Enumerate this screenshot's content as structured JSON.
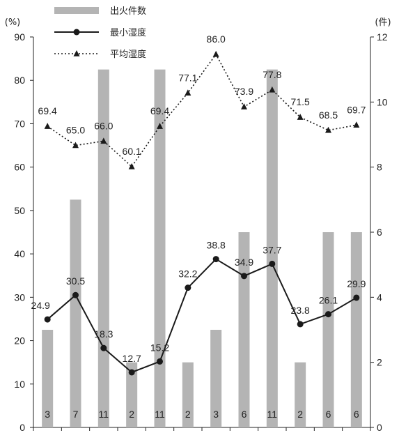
{
  "chart_data": {
    "type": "bar",
    "y_left_unit": "(%)",
    "y_right_unit": "(件)",
    "y_left_ticks": [
      "0",
      "10",
      "20",
      "30",
      "40",
      "50",
      "60",
      "70",
      "80",
      "90"
    ],
    "y_right_ticks": [
      "0",
      "2",
      "4",
      "6",
      "8",
      "10",
      "12"
    ],
    "ylim_left": [
      0,
      90
    ],
    "ylim_right": [
      0,
      12
    ],
    "legend": [
      {
        "label": "出火件数",
        "kind": "bar"
      },
      {
        "label": "最小湿度",
        "kind": "line-circle"
      },
      {
        "label": "平均湿度",
        "kind": "dotted-triangle"
      }
    ],
    "series": [
      {
        "name": "出火件数",
        "axis": "right",
        "values": [
          3,
          7,
          11,
          2,
          11,
          2,
          3,
          6,
          11,
          2,
          6,
          6
        ],
        "value_labels": [
          "3",
          "7",
          "11",
          "2",
          "11",
          "2",
          "3",
          "6",
          "11",
          "2",
          "6",
          "6"
        ]
      },
      {
        "name": "最小湿度",
        "axis": "left",
        "values": [
          24.9,
          30.5,
          18.3,
          12.7,
          15.2,
          32.2,
          38.8,
          34.9,
          37.7,
          23.8,
          26.1,
          29.9
        ],
        "value_labels": [
          "24.9",
          "30.5",
          "18.3",
          "12.7",
          "15.2",
          "32.2",
          "38.8",
          "34.9",
          "37.7",
          "23.8",
          "26.1",
          "29.9"
        ]
      },
      {
        "name": "平均湿度",
        "axis": "left",
        "values": [
          69.4,
          65.0,
          66.0,
          60.1,
          69.4,
          77.1,
          86.0,
          73.9,
          77.8,
          71.5,
          68.5,
          69.7
        ],
        "value_labels": [
          "69.4",
          "65.0",
          "66.0",
          "60.1",
          "69.4",
          "77.1",
          "86.0",
          "73.9",
          "77.8",
          "71.5",
          "68.5",
          "69.7"
        ]
      }
    ],
    "colors": {
      "bar": "#b4b4b4",
      "line": "#1a1a1a"
    }
  }
}
